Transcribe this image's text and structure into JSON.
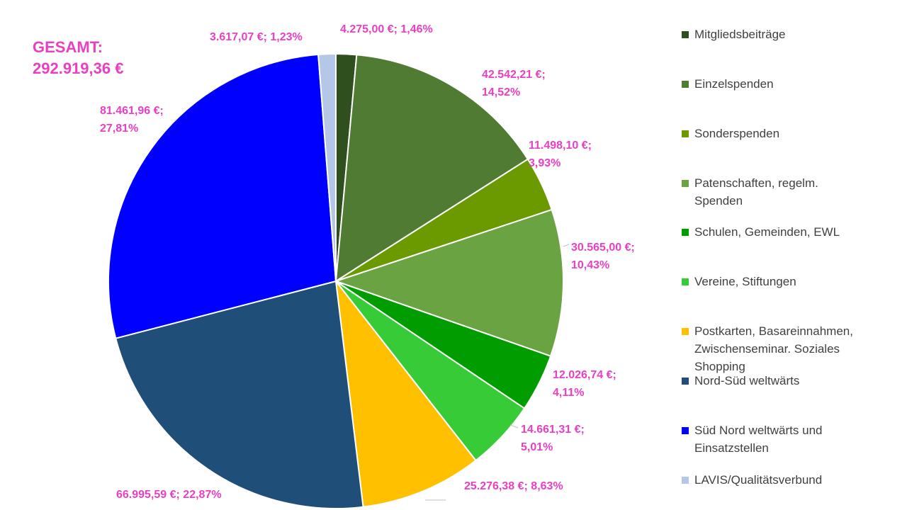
{
  "total": {
    "line1": "GESAMT:",
    "line2": "292.919,36 €"
  },
  "chart_data": {
    "type": "pie",
    "start_angle_deg": 0,
    "direction": "clockwise",
    "legend_position": "right",
    "slices": [
      {
        "name": "Mitgliedsbeiträge",
        "value": 4275.0,
        "percent": 1.46,
        "color": "#2f4f1f",
        "label": [
          "4.275,00 €; 1,46%"
        ]
      },
      {
        "name": "Einzelspenden",
        "value": 42542.21,
        "percent": 14.52,
        "color": "#507b32",
        "label": [
          "42.542,21 €;",
          "14,52%"
        ]
      },
      {
        "name": "Sonderspenden",
        "value": 11498.1,
        "percent": 3.93,
        "color": "#6b9a00",
        "label": [
          "11.498,10 €;",
          "3,93%"
        ]
      },
      {
        "name": "Patenschaften, regelm. Spenden",
        "value": 30565.0,
        "percent": 10.43,
        "color": "#6aa342",
        "label": [
          "30.565,00 €;",
          "10,43%"
        ]
      },
      {
        "name": "Schulen, Gemeinden, EWL",
        "value": 12026.74,
        "percent": 4.11,
        "color": "#009c00",
        "label": [
          "12.026,74 €;",
          "4,11%"
        ]
      },
      {
        "name": "Vereine, Stiftungen",
        "value": 14661.31,
        "percent": 5.01,
        "color": "#37cc37",
        "label": [
          "14.661,31 €;",
          "5,01%"
        ]
      },
      {
        "name": "Postkarten, Basareinnahmen, Zwischenseminar. Soziales Shopping",
        "value": 25276.38,
        "percent": 8.63,
        "color": "#ffc000",
        "label": [
          "25.276,38 €; 8,63%"
        ]
      },
      {
        "name": "Nord-Süd weltwärts",
        "value": 66995.59,
        "percent": 22.87,
        "color": "#1f4e79",
        "label": [
          "66.995,59 €; 22,87%"
        ]
      },
      {
        "name": "Süd Nord weltwärts und Einsatzstellen",
        "value": 81461.96,
        "percent": 27.81,
        "color": "#0000ff",
        "label": [
          "81.461,96 €;",
          "27,81%"
        ]
      },
      {
        "name": "LAVIS/Qualitätsverbund",
        "value": 3617.07,
        "percent": 1.23,
        "color": "#b4c7e7",
        "label": [
          "3.617,07 €; 1,23%"
        ]
      }
    ]
  },
  "legend": {
    "items": [
      {
        "lines": [
          "Mitgliedsbeiträge"
        ],
        "color": "#2f4f1f"
      },
      {
        "lines": [
          "Einzelspenden"
        ],
        "color": "#507b32"
      },
      {
        "lines": [
          "Sonderspenden"
        ],
        "color": "#6b9a00"
      },
      {
        "lines": [
          "Patenschaften, regelm.",
          "Spenden"
        ],
        "color": "#6aa342"
      },
      {
        "lines": [
          "Schulen, Gemeinden, EWL"
        ],
        "color": "#009c00"
      },
      {
        "lines": [
          "Vereine, Stiftungen"
        ],
        "color": "#37cc37"
      },
      {
        "lines": [
          "Postkarten, Basareinnahmen,",
          "Zwischenseminar. Soziales",
          "Shopping"
        ],
        "color": "#ffc000"
      },
      {
        "lines": [
          "Nord-Süd weltwärts"
        ],
        "color": "#1f4e79"
      },
      {
        "lines": [
          "Süd Nord weltwärts und",
          "Einsatzstellen"
        ],
        "color": "#0000ff"
      },
      {
        "lines": [
          "LAVIS/Qualitätsverbund"
        ],
        "color": "#b4c7e7"
      }
    ]
  }
}
